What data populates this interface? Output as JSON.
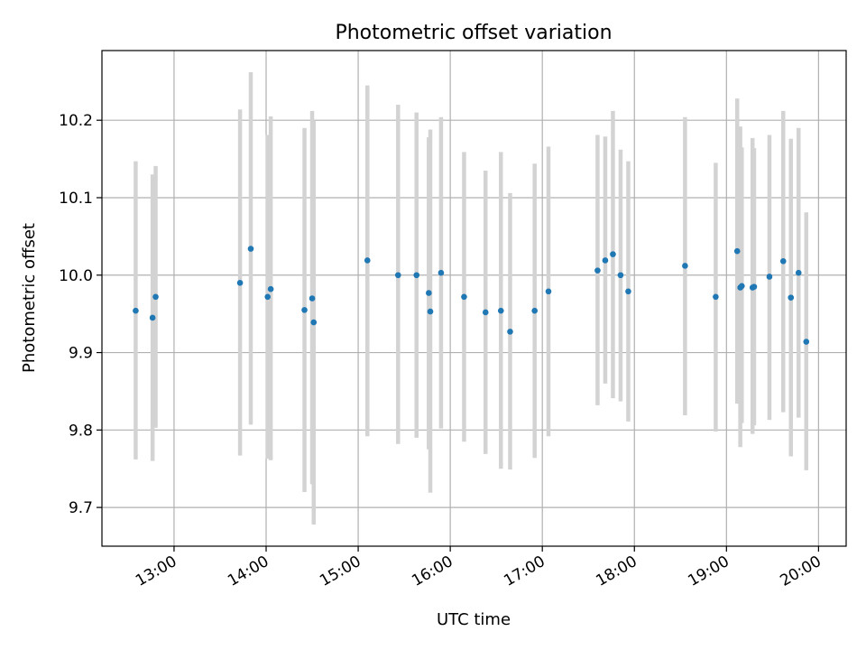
{
  "chart_data": {
    "type": "scatter",
    "title": "Photometric offset variation",
    "xlabel": "UTC time",
    "ylabel": "Photometric offset",
    "xlim": [
      "12:13",
      "20:18"
    ],
    "ylim": [
      9.65,
      10.29
    ],
    "x_ticks": [
      "13:00",
      "14:00",
      "15:00",
      "16:00",
      "17:00",
      "18:00",
      "19:00",
      "20:00"
    ],
    "y_ticks": [
      "9.7",
      "9.8",
      "9.9",
      "10.0",
      "10.1",
      "10.2"
    ],
    "grid": true,
    "colors": {
      "point": "#1f77b4",
      "errorbar": "#d3d3d3",
      "grid": "#b0b0b0"
    },
    "points": [
      {
        "x": "12:35",
        "y": 9.954,
        "err_low": 9.762,
        "err_high": 10.147
      },
      {
        "x": "12:46",
        "y": 9.945,
        "err_low": 9.76,
        "err_high": 10.13
      },
      {
        "x": "12:48",
        "y": 9.972,
        "err_low": 9.803,
        "err_high": 10.141
      },
      {
        "x": "13:43",
        "y": 9.99,
        "err_low": 9.767,
        "err_high": 10.214
      },
      {
        "x": "13:50",
        "y": 10.034,
        "err_low": 9.807,
        "err_high": 10.262
      },
      {
        "x": "14:01",
        "y": 9.972,
        "err_low": 9.763,
        "err_high": 10.181
      },
      {
        "x": "14:03",
        "y": 9.982,
        "err_low": 9.761,
        "err_high": 10.205
      },
      {
        "x": "14:25",
        "y": 9.955,
        "err_low": 9.72,
        "err_high": 10.19
      },
      {
        "x": "14:30",
        "y": 9.97,
        "err_low": 9.73,
        "err_high": 10.212
      },
      {
        "x": "14:31",
        "y": 9.939,
        "err_low": 9.678,
        "err_high": 10.2
      },
      {
        "x": "15:06",
        "y": 10.019,
        "err_low": 9.792,
        "err_high": 10.245
      },
      {
        "x": "15:26",
        "y": 10.0,
        "err_low": 9.782,
        "err_high": 10.22
      },
      {
        "x": "15:38",
        "y": 10.0,
        "err_low": 9.79,
        "err_high": 10.21
      },
      {
        "x": "15:46",
        "y": 9.977,
        "err_low": 9.775,
        "err_high": 10.178
      },
      {
        "x": "15:47",
        "y": 9.953,
        "err_low": 9.719,
        "err_high": 10.188
      },
      {
        "x": "15:54",
        "y": 10.003,
        "err_low": 9.802,
        "err_high": 10.204
      },
      {
        "x": "16:09",
        "y": 9.972,
        "err_low": 9.785,
        "err_high": 10.159
      },
      {
        "x": "16:23",
        "y": 9.952,
        "err_low": 9.769,
        "err_high": 10.135
      },
      {
        "x": "16:33",
        "y": 9.954,
        "err_low": 9.75,
        "err_high": 10.159
      },
      {
        "x": "16:39",
        "y": 9.927,
        "err_low": 9.749,
        "err_high": 10.106
      },
      {
        "x": "16:55",
        "y": 9.954,
        "err_low": 9.764,
        "err_high": 10.144
      },
      {
        "x": "17:04",
        "y": 9.979,
        "err_low": 9.792,
        "err_high": 10.166
      },
      {
        "x": "17:36",
        "y": 10.006,
        "err_low": 9.832,
        "err_high": 10.181
      },
      {
        "x": "17:41",
        "y": 10.019,
        "err_low": 9.86,
        "err_high": 10.179
      },
      {
        "x": "17:46",
        "y": 10.027,
        "err_low": 9.841,
        "err_high": 10.212
      },
      {
        "x": "17:51",
        "y": 10.0,
        "err_low": 9.837,
        "err_high": 10.162
      },
      {
        "x": "17:56",
        "y": 9.979,
        "err_low": 9.811,
        "err_high": 10.147
      },
      {
        "x": "18:33",
        "y": 10.012,
        "err_low": 9.819,
        "err_high": 10.204
      },
      {
        "x": "18:53",
        "y": 9.972,
        "err_low": 9.798,
        "err_high": 10.145
      },
      {
        "x": "19:07",
        "y": 10.031,
        "err_low": 9.834,
        "err_high": 10.228
      },
      {
        "x": "19:09",
        "y": 9.984,
        "err_low": 9.778,
        "err_high": 10.192
      },
      {
        "x": "19:10",
        "y": 9.986,
        "err_low": 9.809,
        "err_high": 10.165
      },
      {
        "x": "19:17",
        "y": 9.984,
        "err_low": 9.795,
        "err_high": 10.177
      },
      {
        "x": "19:18",
        "y": 9.985,
        "err_low": 9.806,
        "err_high": 10.164
      },
      {
        "x": "19:28",
        "y": 9.998,
        "err_low": 9.813,
        "err_high": 10.181
      },
      {
        "x": "19:37",
        "y": 10.018,
        "err_low": 9.823,
        "err_high": 10.212
      },
      {
        "x": "19:42",
        "y": 9.971,
        "err_low": 9.766,
        "err_high": 10.176
      },
      {
        "x": "19:47",
        "y": 10.003,
        "err_low": 9.816,
        "err_high": 10.19
      },
      {
        "x": "19:52",
        "y": 9.914,
        "err_low": 9.748,
        "err_high": 10.081
      }
    ]
  }
}
